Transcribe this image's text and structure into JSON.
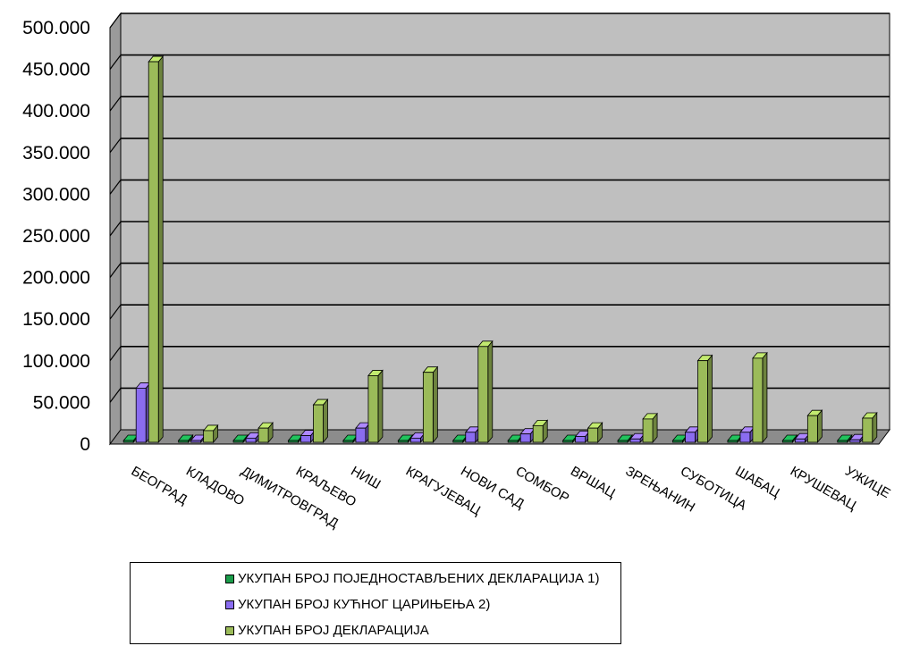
{
  "chart_data": {
    "type": "bar",
    "title": "",
    "xlabel": "",
    "ylabel": "",
    "ylim": [
      0,
      500000
    ],
    "y_ticks": [
      0,
      50000,
      100000,
      150000,
      200000,
      250000,
      300000,
      350000,
      400000,
      450000,
      500000
    ],
    "y_tick_labels": [
      "0",
      "50.000",
      "100.000",
      "150.000",
      "200.000",
      "250.000",
      "300.000",
      "350.000",
      "400.000",
      "450.000",
      "500.000"
    ],
    "grid": true,
    "legend_position": "bottom",
    "categories": [
      "БЕОГРАД",
      "КЛАДОВО",
      "ДИМИТРОВГРАД",
      "КРАЉЕВО",
      "НИШ",
      "КРАГУЈЕВАЦ",
      "НОВИ САД",
      "СОМБОР",
      "ВРШАЦ",
      "ЗРЕЊАНИН",
      "СУБОТИЦА",
      "ШАБАЦ",
      "КРУШЕВАЦ",
      "УЖИЦЕ"
    ],
    "series": [
      {
        "name": "УКУПАН БРОЈ ПОЈЕДНОСТАВЉЕНИХ ДЕКЛАРАЦИЈА  1)",
        "color": "#1a9c4a",
        "values": [
          1000,
          500,
          500,
          800,
          1000,
          600,
          1000,
          700,
          500,
          600,
          700,
          1000,
          500,
          500
        ]
      },
      {
        "name": "УКУПАН БРОЈ КУЋНОГ ЦАРИЊЕЊА  2)",
        "color": "#8a6cf0",
        "values": [
          65000,
          2000,
          5000,
          8000,
          17000,
          5000,
          12000,
          10000,
          7000,
          4000,
          12000,
          12000,
          4000,
          3000
        ]
      },
      {
        "name": "УКУПАН БРОЈ ДЕКЛАРАЦИЈА",
        "color": "#9bbb59",
        "values": [
          457000,
          14000,
          17000,
          45000,
          80000,
          84000,
          115000,
          20000,
          17000,
          28000,
          98000,
          101000,
          32000,
          29000
        ]
      }
    ]
  }
}
